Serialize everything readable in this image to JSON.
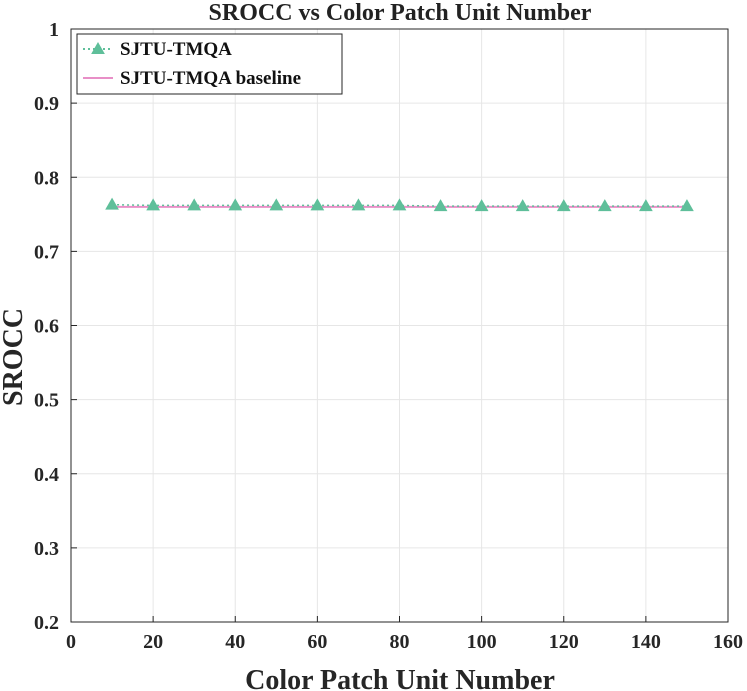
{
  "chart_data": {
    "type": "line",
    "title": "SROCC vs Color Patch Unit Number",
    "xlabel": "Color Patch Unit Number",
    "ylabel": "SROCC",
    "xlim": [
      0,
      160
    ],
    "ylim": [
      0.2,
      1
    ],
    "xticks": [
      0,
      20,
      40,
      60,
      80,
      100,
      120,
      140,
      160
    ],
    "yticks": [
      0.2,
      0.3,
      0.4,
      0.5,
      0.6,
      0.7,
      0.8,
      0.9,
      1
    ],
    "grid": true,
    "legend_position": "top-left",
    "series": [
      {
        "name": "SJTU-TMQA",
        "color": "#5fbf9a",
        "marker": "triangle",
        "line_style": "dotted",
        "x": [
          10,
          20,
          30,
          40,
          50,
          60,
          70,
          80,
          90,
          100,
          110,
          120,
          130,
          140,
          150
        ],
        "y": [
          0.763,
          0.762,
          0.762,
          0.762,
          0.762,
          0.762,
          0.762,
          0.762,
          0.761,
          0.761,
          0.761,
          0.761,
          0.761,
          0.761,
          0.761
        ]
      },
      {
        "name": "SJTU-TMQA baseline",
        "color": "#e88fc7",
        "marker": "none",
        "line_style": "solid",
        "x": [
          10,
          150
        ],
        "y": [
          0.76,
          0.76
        ]
      }
    ]
  }
}
